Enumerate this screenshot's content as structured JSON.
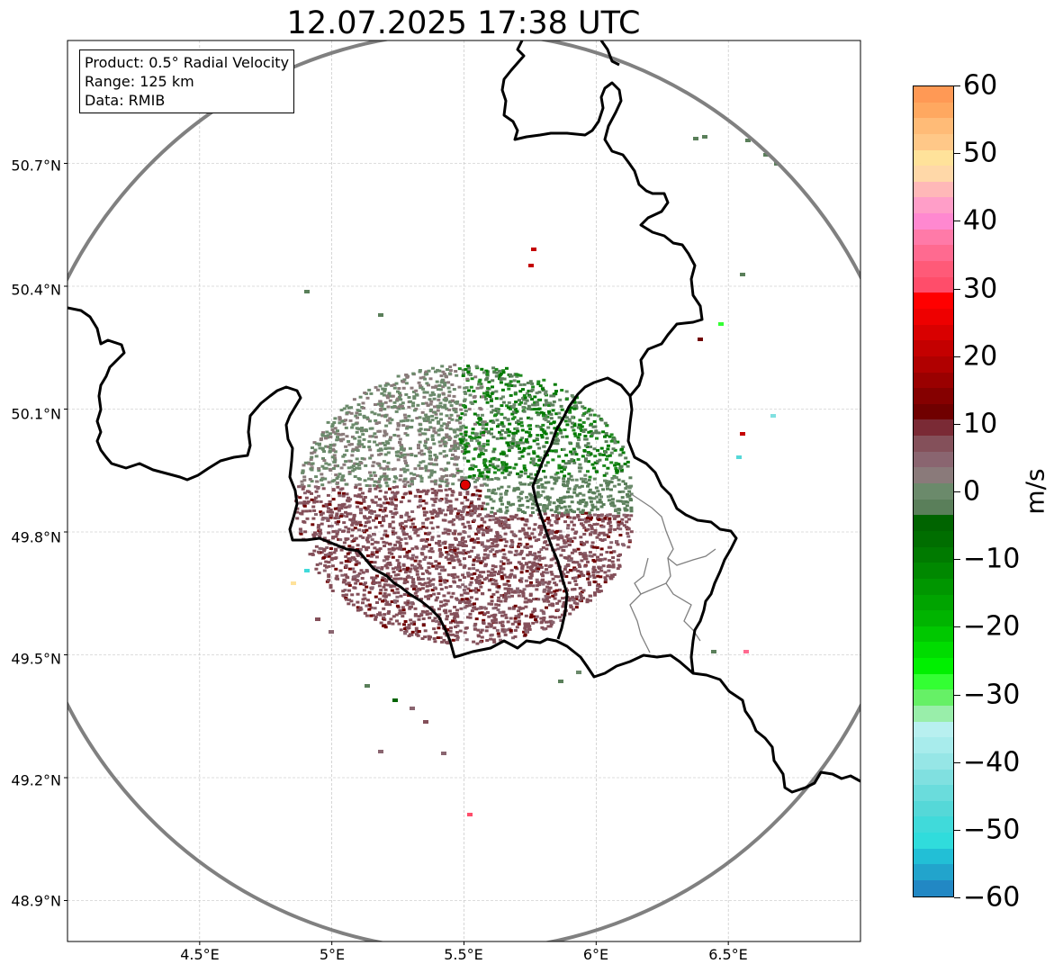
{
  "title": "12.07.2025 17:38 UTC",
  "info_box": {
    "product": "Product: 0.5° Radial Velocity",
    "range": "Range: 125 km",
    "data": "Data: RMIB"
  },
  "map": {
    "lon_range": [
      4.0,
      7.0
    ],
    "lat_range": [
      48.8,
      51.0
    ],
    "x_ticks": [
      "4.5°E",
      "5°E",
      "5.5°E",
      "6°E",
      "6.5°E"
    ],
    "y_ticks": [
      "50.7°N",
      "50.4°N",
      "50.1°N",
      "49.8°N",
      "49.5°N",
      "49.2°N",
      "48.9°N"
    ],
    "radar_site": {
      "lon": 5.505,
      "lat": 49.915,
      "color": "#e00000"
    },
    "range_ring_color": "#808080",
    "border_color": "#000000",
    "admin_border_color": "#808080"
  },
  "colorbar": {
    "label": "m/s",
    "ticks": [
      "60",
      "50",
      "40",
      "30",
      "20",
      "10",
      "0",
      "−10",
      "−20",
      "−30",
      "−40",
      "−50",
      "−60"
    ],
    "min": -60,
    "max": 60,
    "colors_top_to_bottom": [
      "#ff9955",
      "#ffa860",
      "#ffbb77",
      "#ffc888",
      "#ffe29a",
      "#ffd8a8",
      "#ffb8b8",
      "#ff9ec8",
      "#ff88d0",
      "#ff7aa8",
      "#ff6a90",
      "#ff5a78",
      "#ff4d6a",
      "#ff0000",
      "#ee0000",
      "#d90000",
      "#c40000",
      "#b00000",
      "#9a0000",
      "#850000",
      "#700000",
      "#7a2a35",
      "#84505a",
      "#8a6570",
      "#8a7a7a",
      "#6b8a6b",
      "#5a7f5a",
      "#006400",
      "#006e00",
      "#007a00",
      "#008800",
      "#009600",
      "#00a400",
      "#00b400",
      "#00c800",
      "#00dc00",
      "#00f000",
      "#33ff33",
      "#66f066",
      "#99eeaa",
      "#b8f0f0",
      "#a8ecec",
      "#96e6e6",
      "#80e0e0",
      "#6adcdc",
      "#55d8d8",
      "#40dada",
      "#30dcdc",
      "#22bfd6",
      "#22a4cc",
      "#2288c4"
    ]
  }
}
